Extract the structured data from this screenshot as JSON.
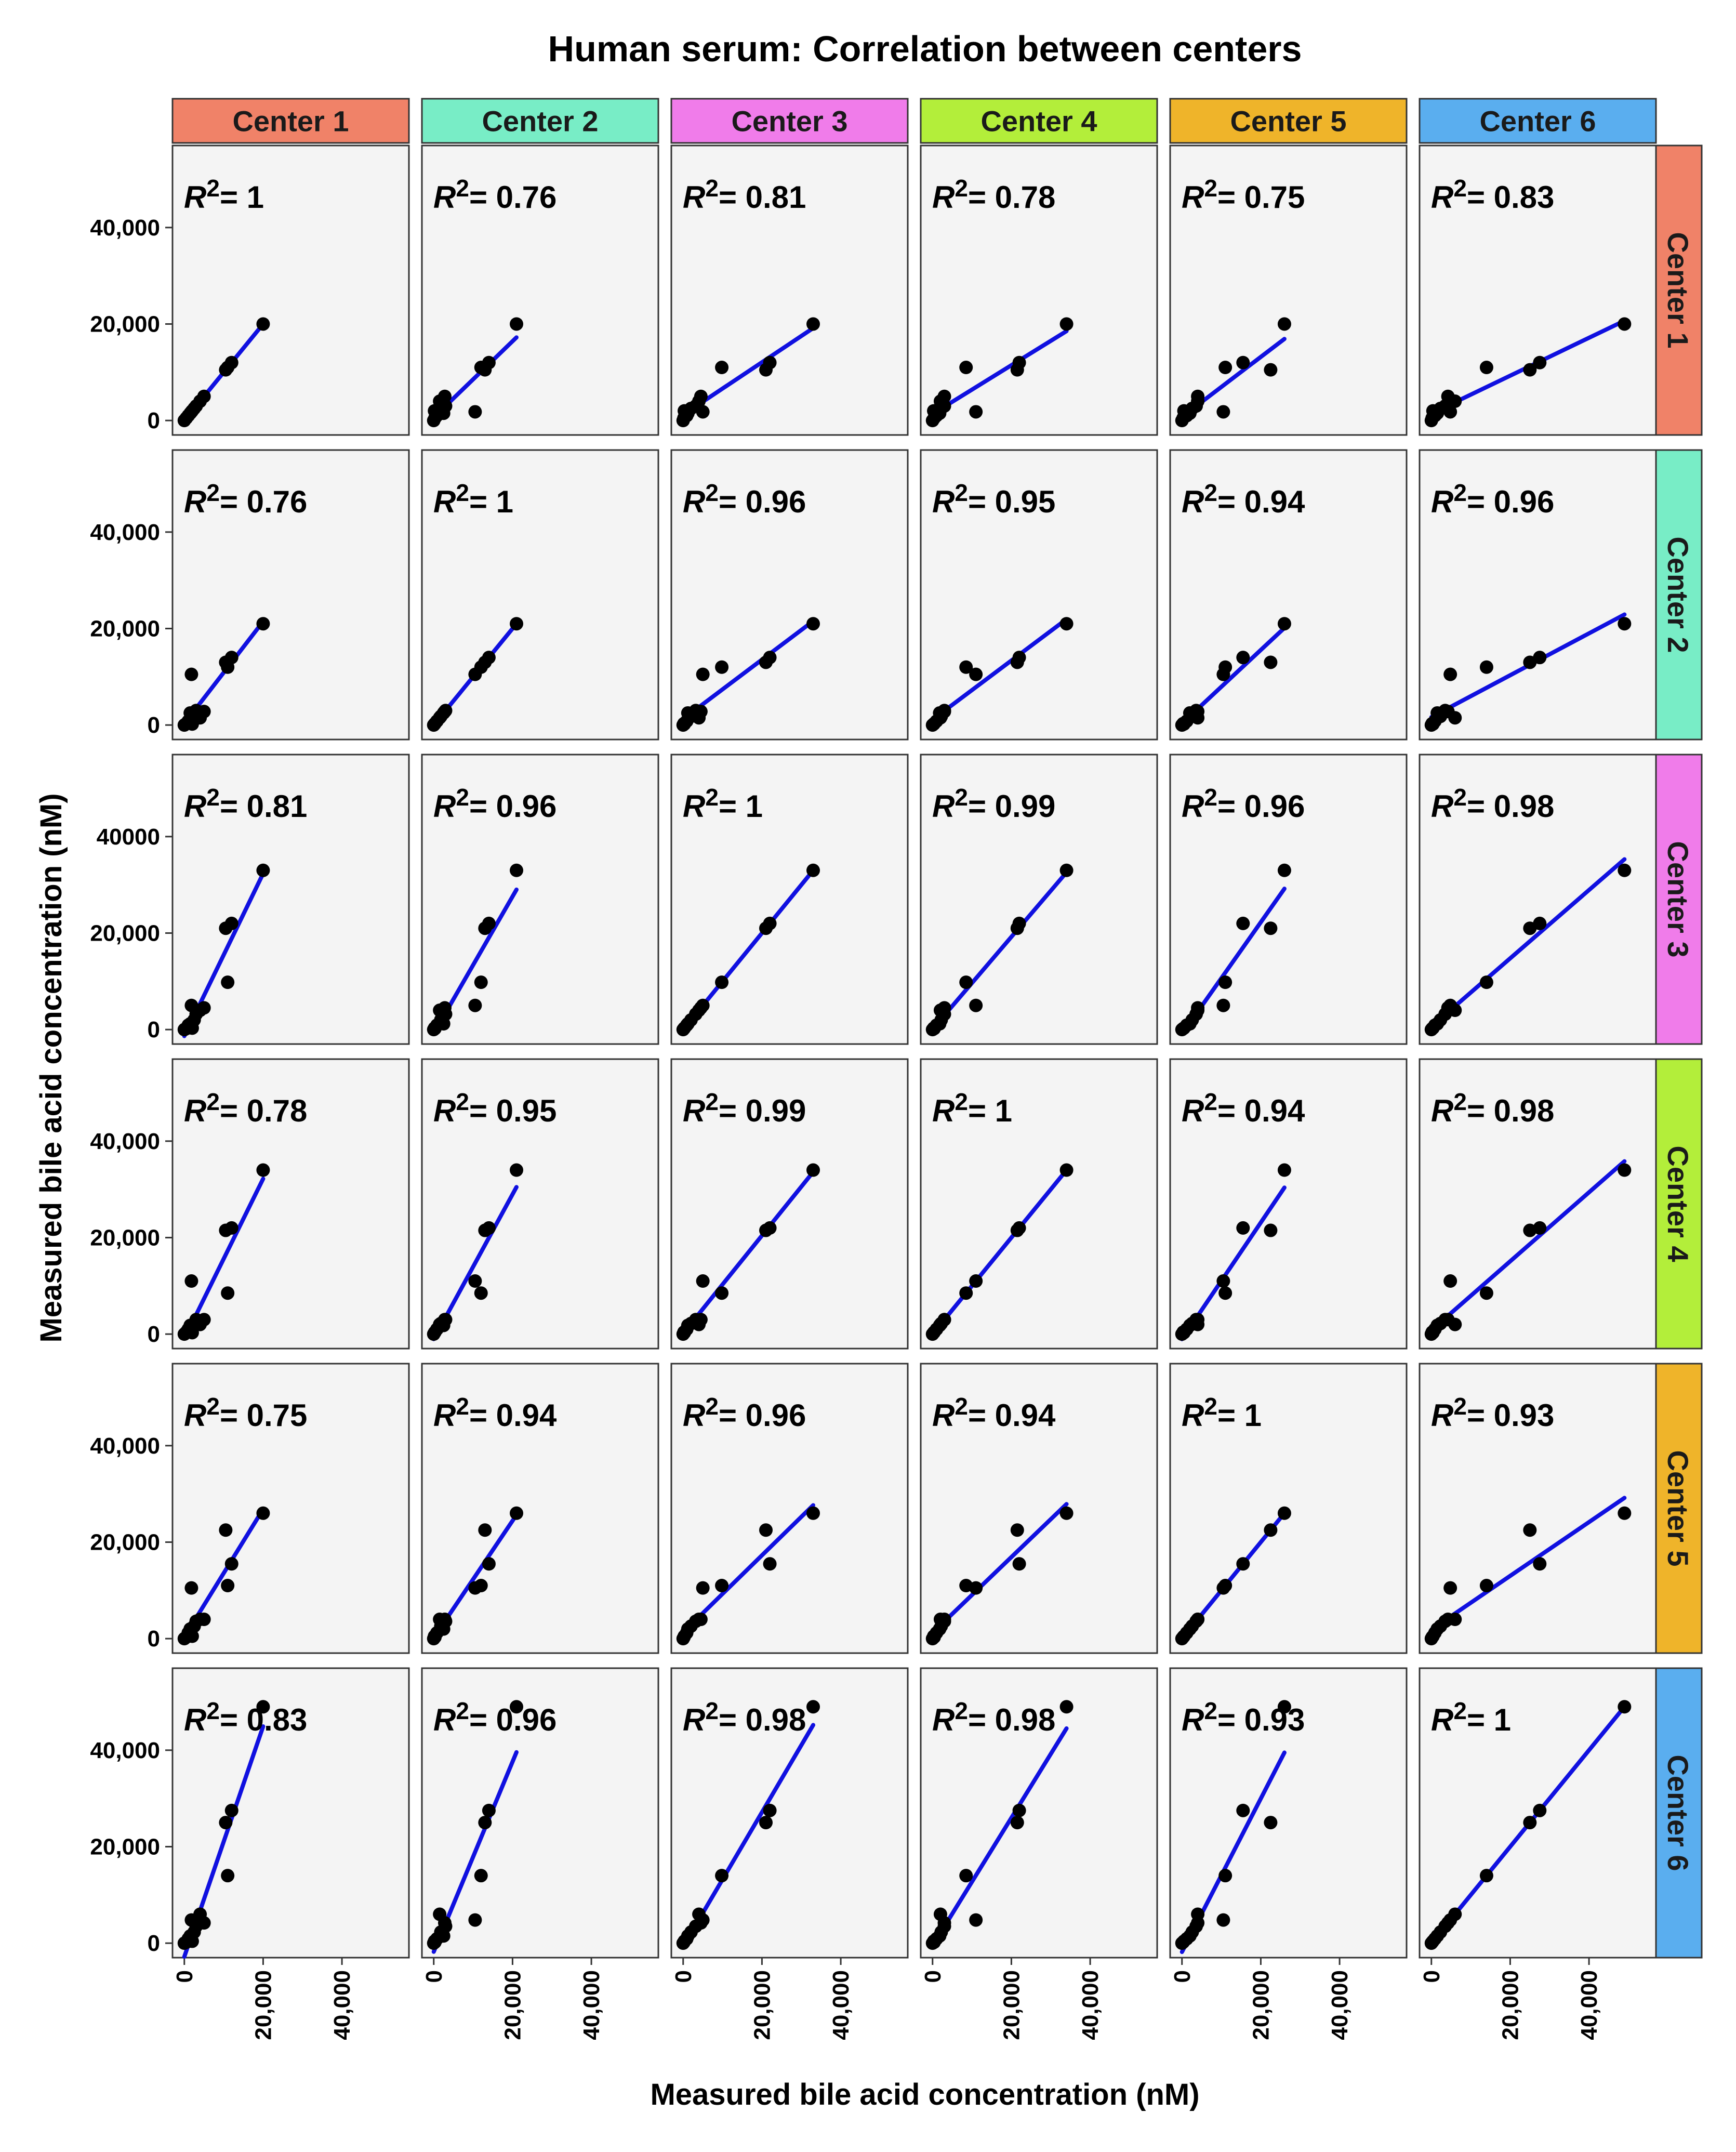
{
  "chart_data": {
    "type": "scatter",
    "title": "Human serum: Correlation between centers",
    "xlabel": "Measured bile acid concentration (nM)",
    "ylabel": "Measured bile acid concentration (nM)",
    "xlim": [
      -3000,
      57000
    ],
    "ylim": [
      -3000,
      57000
    ],
    "centers": [
      {
        "name": "Center 1",
        "color": "#F08268"
      },
      {
        "name": "Center 2",
        "color": "#78EDC6"
      },
      {
        "name": "Center 3",
        "color": "#F07CEA"
      },
      {
        "name": "Center 4",
        "color": "#B3EE3A"
      },
      {
        "name": "Center 5",
        "color": "#EFB42A"
      },
      {
        "name": "Center 6",
        "color": "#5AAEEF"
      }
    ],
    "x_ticks": [
      0,
      20000,
      40000
    ],
    "x_tick_labels": [
      "0",
      "20,000",
      "40,000"
    ],
    "y_ticks": [
      0,
      20000,
      40000
    ],
    "y_tick_labels": [
      [
        "0",
        "20,000",
        "40,000"
      ],
      [
        "0",
        "20,000",
        "40,000"
      ],
      [
        "0",
        "20,000",
        "40000"
      ],
      [
        "0",
        "20,000",
        "40,000"
      ],
      [
        "0",
        "20,000",
        "40,000"
      ],
      [
        "0",
        "20,000",
        "40,000"
      ]
    ],
    "r2_prefix": "R",
    "r2_superscript": "2",
    "r2_values": [
      [
        "= 1",
        "= 0.76",
        "= 0.81",
        "= 0.78",
        "= 0.75",
        "= 0.83"
      ],
      [
        "= 0.76",
        "= 1",
        "= 0.96",
        "= 0.95",
        "= 0.94",
        "= 0.96"
      ],
      [
        "= 0.81",
        "= 0.96",
        "= 1",
        "= 0.99",
        "= 0.96",
        "= 0.98"
      ],
      [
        "= 0.78",
        "= 0.95",
        "= 0.99",
        "= 1",
        "= 0.94",
        "= 0.98"
      ],
      [
        "= 0.75",
        "= 0.94",
        "= 0.96",
        "= 0.94",
        "= 1",
        "= 0.93"
      ],
      [
        "= 0.83",
        "= 0.96",
        "= 0.98",
        "= 0.98",
        "= 0.93",
        "= 1"
      ]
    ],
    "samples": [
      [
        0,
        0,
        0,
        0,
        0,
        0
      ],
      [
        500,
        300,
        200,
        400,
        300,
        200
      ],
      [
        1000,
        800,
        900,
        1000,
        1200,
        900
      ],
      [
        1500,
        2500,
        1200,
        1800,
        2000,
        1500
      ],
      [
        2000,
        200,
        300,
        300,
        500,
        400
      ],
      [
        2500,
        1800,
        2000,
        2200,
        2600,
        2300
      ],
      [
        3000,
        3000,
        3200,
        3000,
        3600,
        3500
      ],
      [
        4000,
        1500,
        4000,
        2000,
        4000,
        6000
      ],
      [
        5000,
        2800,
        4500,
        3000,
        4000,
        4200
      ],
      [
        11000,
        12000,
        9800,
        8500,
        11000,
        14000
      ],
      [
        12000,
        14000,
        22000,
        22000,
        15500,
        27500
      ],
      [
        10500,
        13000,
        21000,
        21500,
        22500,
        25000
      ],
      [
        1800,
        10500,
        5000,
        11000,
        10500,
        4800
      ],
      [
        20000,
        21000,
        33000,
        34000,
        26000,
        49000
      ]
    ]
  }
}
